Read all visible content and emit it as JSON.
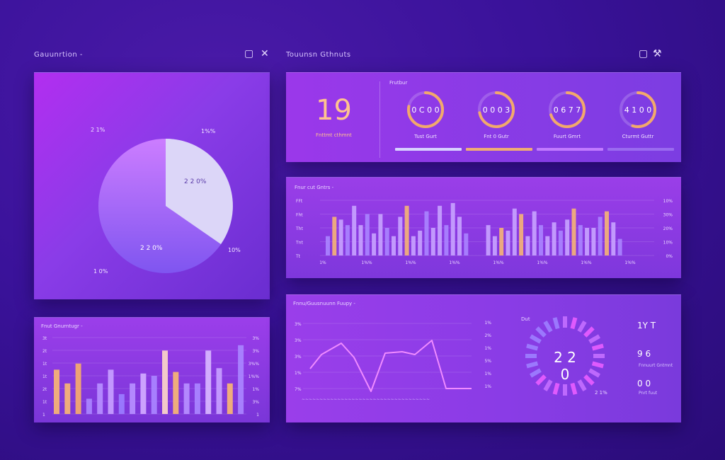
{
  "window_left": {
    "title": "Gauunrtion -"
  },
  "window_right": {
    "title": "Touunsn Gthnuts"
  },
  "icons": {
    "square": "square-icon",
    "close": "close-icon",
    "tools": "tools-icon"
  },
  "pie_panel": {
    "labels": {
      "top_left": "2 1%",
      "top_right": "1%%",
      "slice_light": "2 2 0%",
      "slice_purple": "2 2 0%",
      "right": "10%",
      "bottom_left": "1 0%"
    },
    "slices": [
      {
        "name": "light",
        "value": 0.35,
        "color": "#dcd6f8"
      },
      {
        "name": "purple",
        "value": 0.65,
        "color": "#b066ff"
      }
    ]
  },
  "kpi_panel": {
    "header": "Frutbur",
    "big_number": "19",
    "big_caption": "Fnttmt cthmnt",
    "gauges": [
      {
        "value_text": "0 C 0 0",
        "caption": "Tust Gurt",
        "fill": 0.78,
        "color": "#f2a96b"
      },
      {
        "value_text": "0 0 0 3",
        "caption": "Fnt 0 Gutr",
        "fill": 0.72,
        "color": "#f2a96b"
      },
      {
        "value_text": "0 6 7 7",
        "caption": "Fuurt Gmrt",
        "fill": 0.7,
        "color": "#f2a96b"
      },
      {
        "value_text": "4 1 0 0",
        "caption": "Cturmt Guttr",
        "fill": 0.55,
        "color": "#f2a96b"
      }
    ],
    "progress_bars": [
      "#d8d2ff",
      "#f0ad74",
      "#c27bff",
      "#9a6bf0"
    ]
  },
  "bar_panel_top": {
    "title": "Fnur cut Gntrs -",
    "y_labels_left": [
      "FFt",
      "Fht",
      "Tht",
      "Tnt",
      "Tt"
    ],
    "y_labels_right": [
      "10%",
      "30%",
      "20%",
      "10%",
      "0%"
    ],
    "x_labels": [
      "1%",
      "1%%",
      "1%%",
      "1%%",
      "1%%",
      "1%%",
      "1%%",
      "1%%"
    ]
  },
  "bar_panel_left": {
    "title": "Fnut Gnurntugr -",
    "y_labels_left": [
      "3t",
      "2t",
      "1t",
      "1t",
      "2t",
      "1t",
      "1"
    ],
    "y_labels_right": [
      "3%",
      "3%",
      "3%%",
      "1%%",
      "1%",
      "3%",
      "1"
    ]
  },
  "line_panel": {
    "title": "Fnnu/Guusnuunn Fuupy -",
    "y_labels_left": [
      "3%",
      "3%",
      "3%",
      "1%",
      "7%"
    ],
    "y_labels_right": [
      "1%",
      "2%",
      "1%",
      "5%",
      "1%",
      "1%"
    ],
    "x_text": "∼∼∼∼∼∼∼∼∼∼∼∼∼∼∼∼∼∼∼∼∼∼∼∼∼∼∼∼∼∼∼∼∼∼∼∼",
    "radial_top": "Dut",
    "radial_value": "2 2 0",
    "radial_bottom": "2 1%",
    "side_stats": [
      {
        "value": "1Y T",
        "caption": ""
      },
      {
        "value": "9 6",
        "caption": "Fnnuurt Gntmnt"
      },
      {
        "value": "0 0",
        "caption": "Pnrt fuut"
      }
    ]
  }
}
